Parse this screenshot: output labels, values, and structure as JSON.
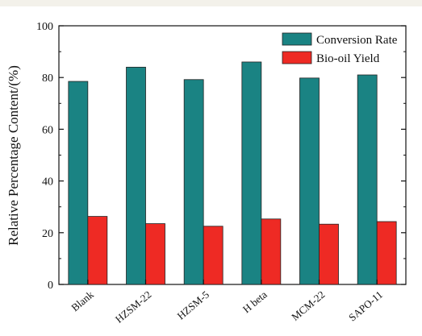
{
  "colors": {
    "conversion": "#1a8383",
    "biooil": "#ee2a24",
    "axis": "#111111"
  },
  "chart_data": {
    "type": "bar",
    "title": "",
    "xlabel": "",
    "ylabel": "Relative Percentage Content/(%)",
    "categories": [
      "Blank",
      "HZSM-22",
      "HZSM-5",
      "H beta",
      "MCM-22",
      "SAPO-11"
    ],
    "series": [
      {
        "name": "Conversion Rate",
        "values": [
          78.5,
          84.0,
          79.2,
          86.0,
          79.8,
          81.0
        ]
      },
      {
        "name": "Bio-oil Yield",
        "values": [
          26.3,
          23.5,
          22.5,
          25.3,
          23.3,
          24.3
        ]
      }
    ],
    "ylim": [
      0,
      100
    ],
    "yticks": [
      0,
      20,
      40,
      60,
      80,
      100
    ],
    "grid": false,
    "legend": "top-right"
  }
}
